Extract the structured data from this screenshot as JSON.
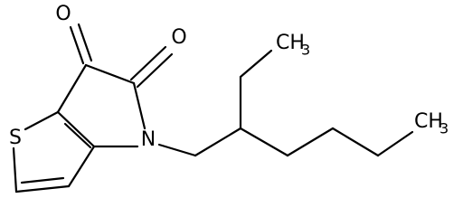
{
  "atoms": [
    {
      "label": "O"
    },
    {
      "label": "O"
    },
    {
      "label": "S"
    },
    {
      "label": "N"
    },
    {
      "label": "CH",
      "subscript": "3"
    },
    {
      "label": "CH",
      "subscript": "3"
    }
  ]
}
